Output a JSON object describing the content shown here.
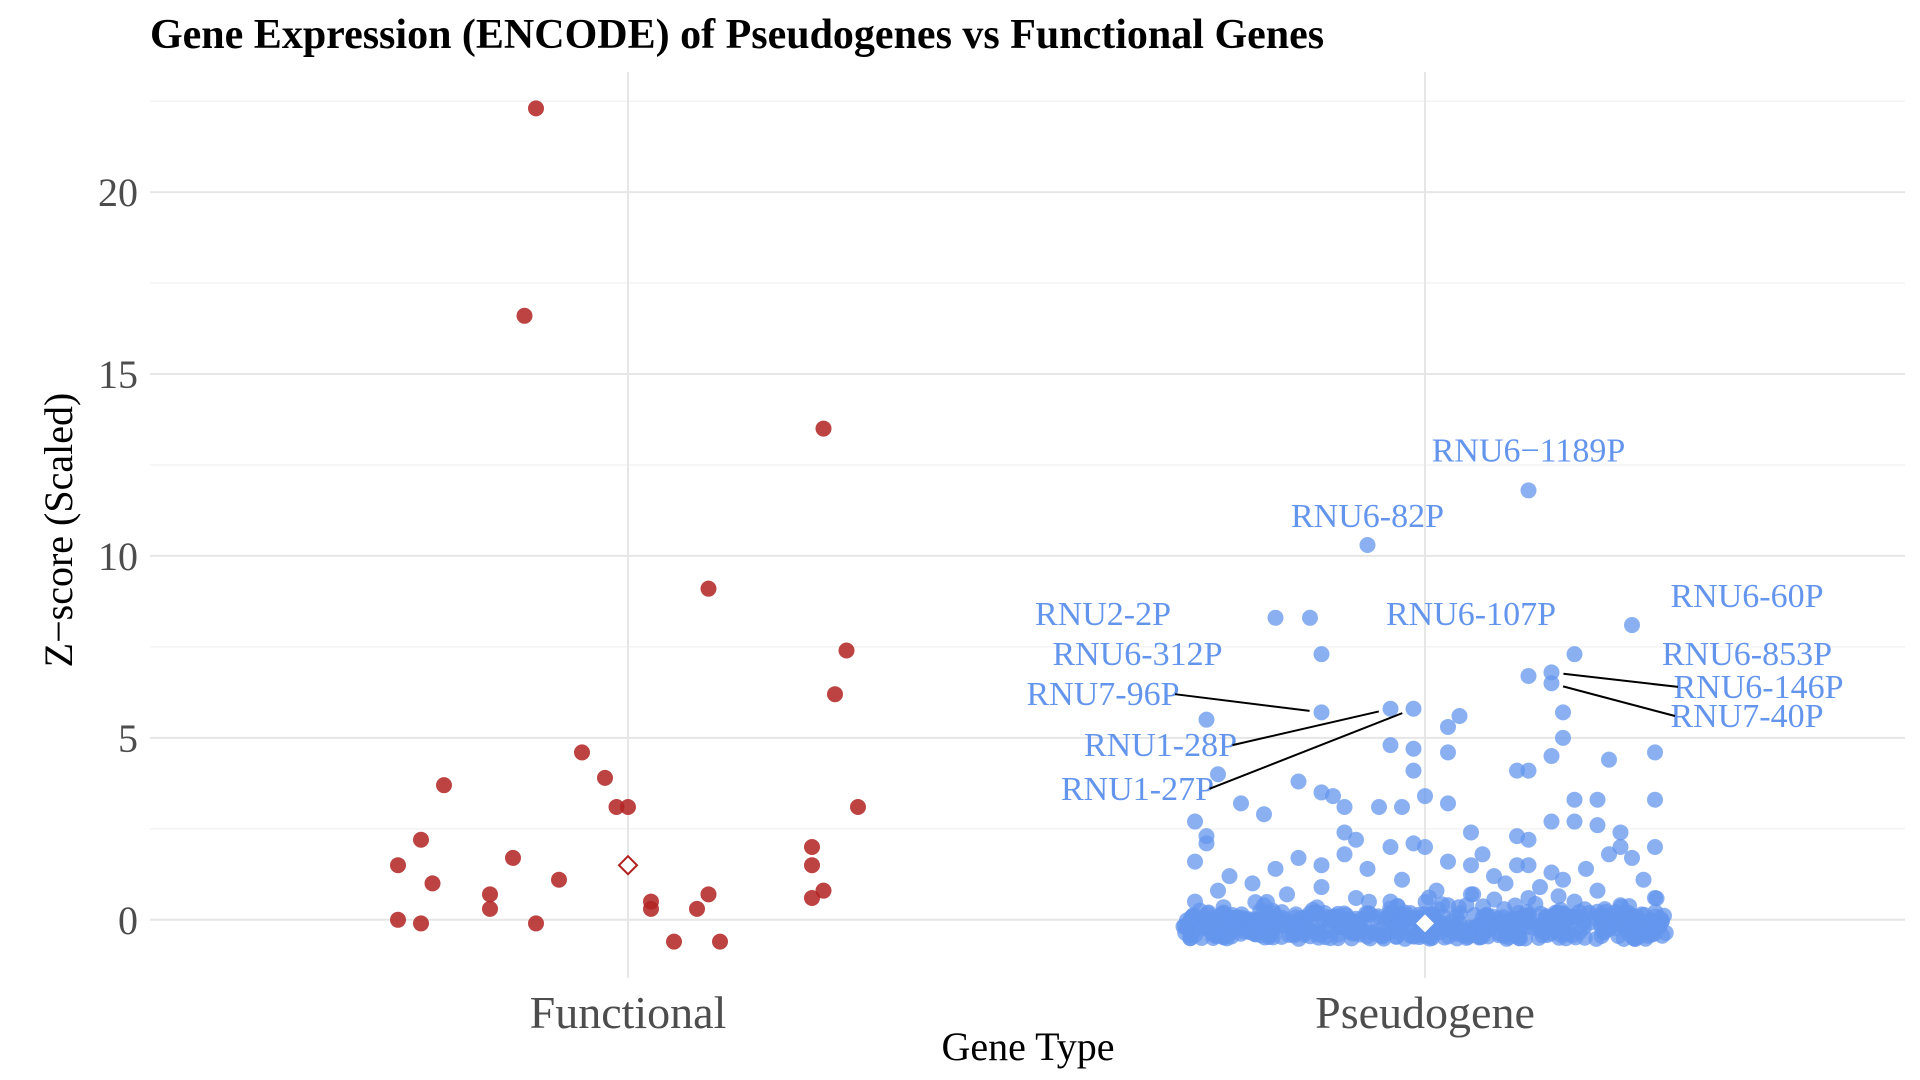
{
  "chart_data": {
    "type": "scatter",
    "title": "Gene Expression (ENCODE) of Pseudogenes vs Functional Genes",
    "xlabel": "Gene Type",
    "ylabel": "Z−score (Scaled)",
    "categories": [
      "Functional",
      "Pseudogene"
    ],
    "ylim": [
      -1.6,
      23.3
    ],
    "yticks": [
      0,
      5,
      10,
      15,
      20
    ],
    "grid": true,
    "legend": "none",
    "colors": {
      "Functional": "#b22222",
      "Pseudogene": "#6495ed",
      "annotation_line": "#000000",
      "mean_marker_outline": "#b22222"
    },
    "means": [
      {
        "category": "Functional",
        "value": 1.5
      },
      {
        "category": "Pseudogene",
        "value": -0.1
      }
    ],
    "series": [
      {
        "category": "Functional",
        "points": [
          {
            "x": -0.08,
            "y": 22.3
          },
          {
            "x": -0.09,
            "y": 16.6
          },
          {
            "x": 0.17,
            "y": 13.5
          },
          {
            "x": 0.07,
            "y": 9.1
          },
          {
            "x": 0.19,
            "y": 7.4
          },
          {
            "x": 0.18,
            "y": 6.2
          },
          {
            "x": -0.04,
            "y": 4.6
          },
          {
            "x": -0.02,
            "y": 3.9
          },
          {
            "x": -0.16,
            "y": 3.7
          },
          {
            "x": -0.01,
            "y": 3.1
          },
          {
            "x": 0.0,
            "y": 3.1
          },
          {
            "x": 0.2,
            "y": 3.1
          },
          {
            "x": -0.18,
            "y": 2.2
          },
          {
            "x": 0.16,
            "y": 2.0
          },
          {
            "x": -0.1,
            "y": 1.7
          },
          {
            "x": -0.2,
            "y": 1.5
          },
          {
            "x": 0.16,
            "y": 1.5
          },
          {
            "x": -0.06,
            "y": 1.1
          },
          {
            "x": -0.17,
            "y": 1.0
          },
          {
            "x": 0.17,
            "y": 0.8
          },
          {
            "x": -0.12,
            "y": 0.7
          },
          {
            "x": 0.07,
            "y": 0.7
          },
          {
            "x": 0.16,
            "y": 0.6
          },
          {
            "x": 0.02,
            "y": 0.5
          },
          {
            "x": -0.12,
            "y": 0.3
          },
          {
            "x": 0.02,
            "y": 0.3
          },
          {
            "x": 0.06,
            "y": 0.3
          },
          {
            "x": -0.2,
            "y": 0.0
          },
          {
            "x": -0.18,
            "y": -0.1
          },
          {
            "x": -0.08,
            "y": -0.1
          },
          {
            "x": 0.04,
            "y": -0.6
          },
          {
            "x": 0.08,
            "y": -0.6
          }
        ]
      },
      {
        "category": "Pseudogene",
        "points": [
          {
            "x": 0.09,
            "y": 11.8
          },
          {
            "x": -0.05,
            "y": 10.3
          },
          {
            "x": -0.13,
            "y": 8.3
          },
          {
            "x": -0.1,
            "y": 8.3
          },
          {
            "x": 0.18,
            "y": 8.1
          },
          {
            "x": -0.09,
            "y": 7.3
          },
          {
            "x": 0.13,
            "y": 7.3
          },
          {
            "x": 0.11,
            "y": 6.8
          },
          {
            "x": 0.09,
            "y": 6.7
          },
          {
            "x": 0.11,
            "y": 6.5
          },
          {
            "x": -0.09,
            "y": 5.7
          },
          {
            "x": -0.03,
            "y": 5.8
          },
          {
            "x": -0.01,
            "y": 5.8
          },
          {
            "x": 0.12,
            "y": 5.7
          },
          {
            "x": 0.03,
            "y": 5.6
          },
          {
            "x": 0.02,
            "y": 5.3
          },
          {
            "x": -0.19,
            "y": 5.5
          },
          {
            "x": 0.12,
            "y": 5.0
          },
          {
            "x": -0.03,
            "y": 4.8
          },
          {
            "x": -0.01,
            "y": 4.7
          },
          {
            "x": 0.02,
            "y": 4.6
          },
          {
            "x": 0.2,
            "y": 4.6
          },
          {
            "x": 0.11,
            "y": 4.5
          },
          {
            "x": 0.16,
            "y": 4.4
          },
          {
            "x": 0.08,
            "y": 4.1
          },
          {
            "x": 0.09,
            "y": 4.1
          },
          {
            "x": -0.01,
            "y": 4.1
          },
          {
            "x": -0.18,
            "y": 4.0
          },
          {
            "x": -0.11,
            "y": 3.8
          },
          {
            "x": -0.09,
            "y": 3.5
          },
          {
            "x": -0.08,
            "y": 3.4
          },
          {
            "x": 0.0,
            "y": 3.4
          },
          {
            "x": 0.13,
            "y": 3.3
          },
          {
            "x": 0.15,
            "y": 3.3
          },
          {
            "x": 0.2,
            "y": 3.3
          },
          {
            "x": -0.16,
            "y": 3.2
          },
          {
            "x": -0.07,
            "y": 3.1
          },
          {
            "x": -0.04,
            "y": 3.1
          },
          {
            "x": -0.02,
            "y": 3.1
          },
          {
            "x": 0.02,
            "y": 3.2
          },
          {
            "x": -0.14,
            "y": 2.9
          },
          {
            "x": 0.11,
            "y": 2.7
          },
          {
            "x": 0.13,
            "y": 2.7
          },
          {
            "x": 0.15,
            "y": 2.6
          },
          {
            "x": -0.2,
            "y": 2.7
          },
          {
            "x": -0.07,
            "y": 2.4
          },
          {
            "x": 0.04,
            "y": 2.4
          },
          {
            "x": 0.17,
            "y": 2.4
          },
          {
            "x": -0.19,
            "y": 2.3
          },
          {
            "x": 0.08,
            "y": 2.3
          },
          {
            "x": 0.09,
            "y": 2.2
          },
          {
            "x": -0.06,
            "y": 2.2
          },
          {
            "x": -0.01,
            "y": 2.1
          },
          {
            "x": -0.03,
            "y": 2.0
          },
          {
            "x": 0.17,
            "y": 2.0
          },
          {
            "x": 0.2,
            "y": 2.0
          },
          {
            "x": 0.0,
            "y": 2.0
          },
          {
            "x": -0.07,
            "y": 1.8
          },
          {
            "x": -0.19,
            "y": 2.1
          },
          {
            "x": -0.11,
            "y": 1.7
          },
          {
            "x": 0.05,
            "y": 1.8
          },
          {
            "x": 0.16,
            "y": 1.8
          },
          {
            "x": 0.18,
            "y": 1.7
          },
          {
            "x": -0.2,
            "y": 1.6
          },
          {
            "x": 0.02,
            "y": 1.6
          },
          {
            "x": -0.09,
            "y": 1.5
          },
          {
            "x": 0.04,
            "y": 1.5
          },
          {
            "x": 0.08,
            "y": 1.5
          },
          {
            "x": 0.09,
            "y": 1.5
          },
          {
            "x": -0.13,
            "y": 1.4
          },
          {
            "x": 0.14,
            "y": 1.4
          },
          {
            "x": -0.05,
            "y": 1.4
          },
          {
            "x": 0.11,
            "y": 1.3
          },
          {
            "x": -0.17,
            "y": 1.2
          },
          {
            "x": 0.06,
            "y": 1.2
          },
          {
            "x": -0.02,
            "y": 1.1
          },
          {
            "x": 0.12,
            "y": 1.1
          },
          {
            "x": 0.19,
            "y": 1.1
          },
          {
            "x": -0.15,
            "y": 1.0
          },
          {
            "x": 0.07,
            "y": 1.0
          },
          {
            "x": -0.09,
            "y": 0.9
          },
          {
            "x": 0.1,
            "y": 0.9
          },
          {
            "x": -0.18,
            "y": 0.8
          },
          {
            "x": 0.01,
            "y": 0.8
          },
          {
            "x": 0.15,
            "y": 0.8
          },
          {
            "x": -0.12,
            "y": 0.7
          },
          {
            "x": 0.04,
            "y": 0.7
          },
          {
            "x": 0.2,
            "y": 0.6
          },
          {
            "x": -0.06,
            "y": 0.6
          },
          {
            "x": 0.09,
            "y": 0.6
          },
          {
            "x": -0.2,
            "y": 0.5
          },
          {
            "x": 0.13,
            "y": 0.5
          },
          {
            "x": -0.03,
            "y": 0.5
          },
          {
            "x": 0.17,
            "y": 0.4
          },
          {
            "x": -0.14,
            "y": 0.4
          },
          {
            "x": 0.02,
            "y": 0.4
          }
        ]
      }
    ],
    "annotations": [
      {
        "label": "RNU6−1189P",
        "point": {
          "x": 0.09,
          "y": 11.8
        },
        "text_at": {
          "x": 0.09,
          "y": 12.9
        },
        "leader": false
      },
      {
        "label": "RNU6-82P",
        "point": {
          "x": -0.05,
          "y": 10.3
        },
        "text_at": {
          "x": -0.05,
          "y": 11.1
        },
        "leader": false
      },
      {
        "label": "RNU2-2P",
        "point": {
          "x": -0.13,
          "y": 8.3
        },
        "text_at": {
          "x": -0.28,
          "y": 8.4
        },
        "leader": false
      },
      {
        "label": "RNU6-107P",
        "point": {
          "x": -0.1,
          "y": 8.3
        },
        "text_at": {
          "x": 0.04,
          "y": 8.4
        },
        "leader": false
      },
      {
        "label": "RNU6-60P",
        "point": {
          "x": 0.18,
          "y": 8.1
        },
        "text_at": {
          "x": 0.28,
          "y": 8.9
        },
        "leader": false
      },
      {
        "label": "RNU6-312P",
        "point": {
          "x": -0.09,
          "y": 7.3
        },
        "text_at": {
          "x": -0.25,
          "y": 7.3
        },
        "leader": false
      },
      {
        "label": "RNU6-853P",
        "point": {
          "x": 0.13,
          "y": 7.3
        },
        "text_at": {
          "x": 0.28,
          "y": 7.3
        },
        "leader": false
      },
      {
        "label": "RNU6-146P",
        "point": {
          "x": 0.11,
          "y": 6.8
        },
        "text_at": {
          "x": 0.29,
          "y": 6.4
        },
        "leader": true
      },
      {
        "label": "RNU7-96P",
        "point": {
          "x": -0.09,
          "y": 5.7
        },
        "text_at": {
          "x": -0.28,
          "y": 6.2
        },
        "leader": true
      },
      {
        "label": "RNU7-40P",
        "point": {
          "x": 0.11,
          "y": 6.5
        },
        "text_at": {
          "x": 0.28,
          "y": 5.6
        },
        "leader": true
      },
      {
        "label": "RNU1-28P",
        "point": {
          "x": -0.03,
          "y": 5.8
        },
        "text_at": {
          "x": -0.23,
          "y": 4.8
        },
        "leader": true
      },
      {
        "label": "RNU1-27P",
        "point": {
          "x": -0.01,
          "y": 5.8
        },
        "text_at": {
          "x": -0.25,
          "y": 3.6
        },
        "leader": true
      }
    ]
  }
}
